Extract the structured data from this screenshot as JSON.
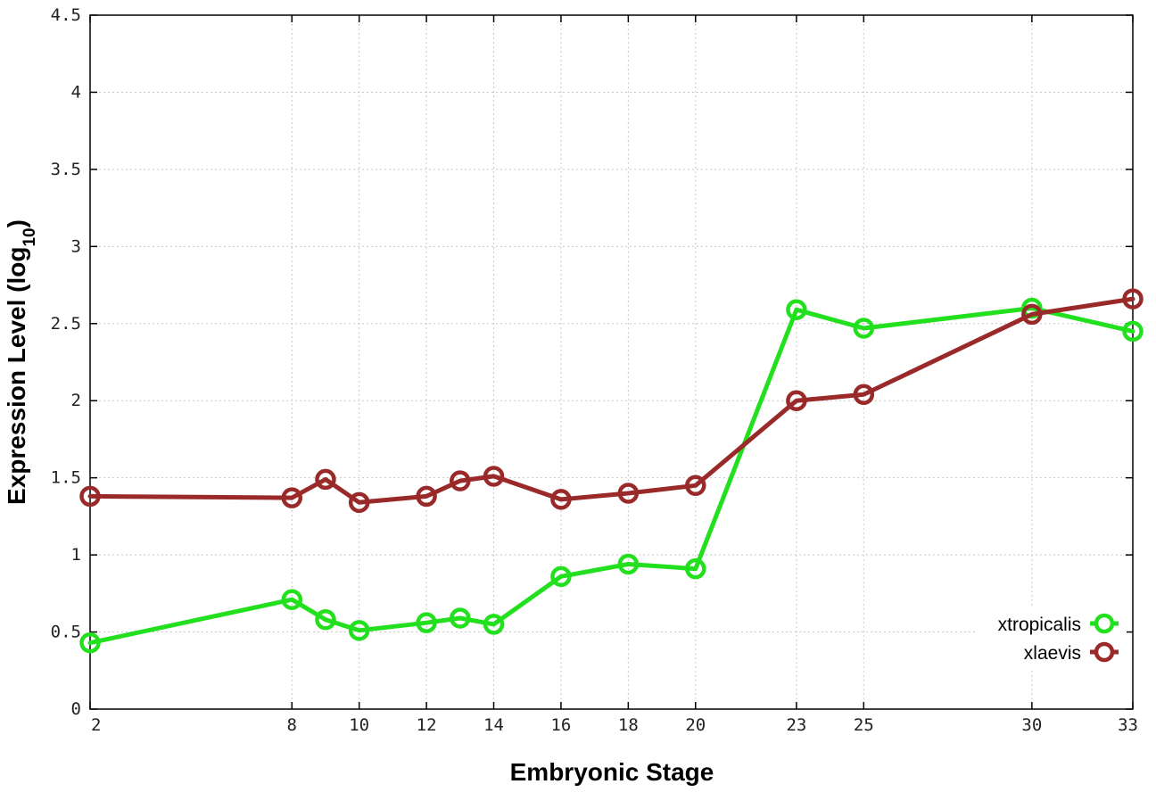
{
  "chart_data": {
    "type": "line",
    "title": "",
    "xlabel": "Embryonic Stage",
    "ylabel": "Expression Level (log",
    "ylabel_subscript": "10",
    "ylabel_close": ")",
    "x": [
      2,
      8,
      9,
      10,
      12,
      13,
      14,
      16,
      18,
      20,
      23,
      25,
      30,
      33
    ],
    "x_ticks": [
      2,
      8,
      10,
      12,
      14,
      16,
      18,
      20,
      23,
      25,
      30,
      33
    ],
    "x_tick_labels": [
      "2",
      "8",
      "10",
      "12",
      "14",
      "16",
      "18",
      "20",
      "23",
      "25",
      "30",
      "33"
    ],
    "y_ticks": [
      0,
      0.5,
      1,
      1.5,
      2,
      2.5,
      3,
      3.5,
      4,
      4.5
    ],
    "y_tick_labels": [
      "0",
      "0.5",
      "1",
      "1.5",
      "2",
      "2.5",
      "3",
      "3.5",
      "4",
      "4.5"
    ],
    "xlim": [
      2,
      33
    ],
    "ylim": [
      0,
      4.5
    ],
    "grid": true,
    "legend_position": "bottom-right",
    "series": [
      {
        "name": "xtropicalis",
        "color": "#22e01e",
        "values": [
          0.43,
          0.71,
          0.58,
          0.51,
          0.56,
          0.59,
          0.55,
          0.86,
          0.94,
          0.91,
          2.59,
          2.47,
          2.6,
          2.45
        ]
      },
      {
        "name": "xlaevis",
        "color": "#9a2a2a",
        "values": [
          1.38,
          1.37,
          1.49,
          1.34,
          1.38,
          1.48,
          1.51,
          1.36,
          1.4,
          1.45,
          2.0,
          2.04,
          2.56,
          2.66
        ]
      }
    ]
  }
}
